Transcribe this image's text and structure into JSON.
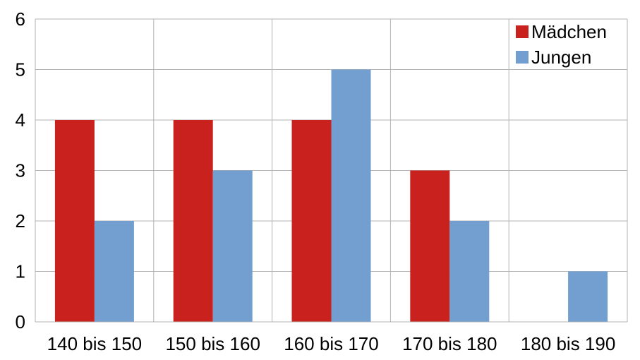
{
  "chart_data": {
    "type": "bar",
    "title": "",
    "xlabel": "",
    "ylabel": "",
    "categories": [
      "140 bis 150",
      "150 bis 160",
      "160 bis 170",
      "170 bis 180",
      "180 bis 190"
    ],
    "series": [
      {
        "name": "Mädchen",
        "color": "#c9211e",
        "values": [
          4,
          4,
          4,
          3,
          0
        ]
      },
      {
        "name": "Jungen",
        "color": "#729fcf",
        "values": [
          2,
          3,
          5,
          2,
          1
        ]
      }
    ],
    "ylim": [
      0,
      6
    ],
    "yticks": [
      0,
      1,
      2,
      3,
      4,
      5,
      6
    ],
    "grid": true,
    "legend": {
      "position": "top-right"
    }
  }
}
